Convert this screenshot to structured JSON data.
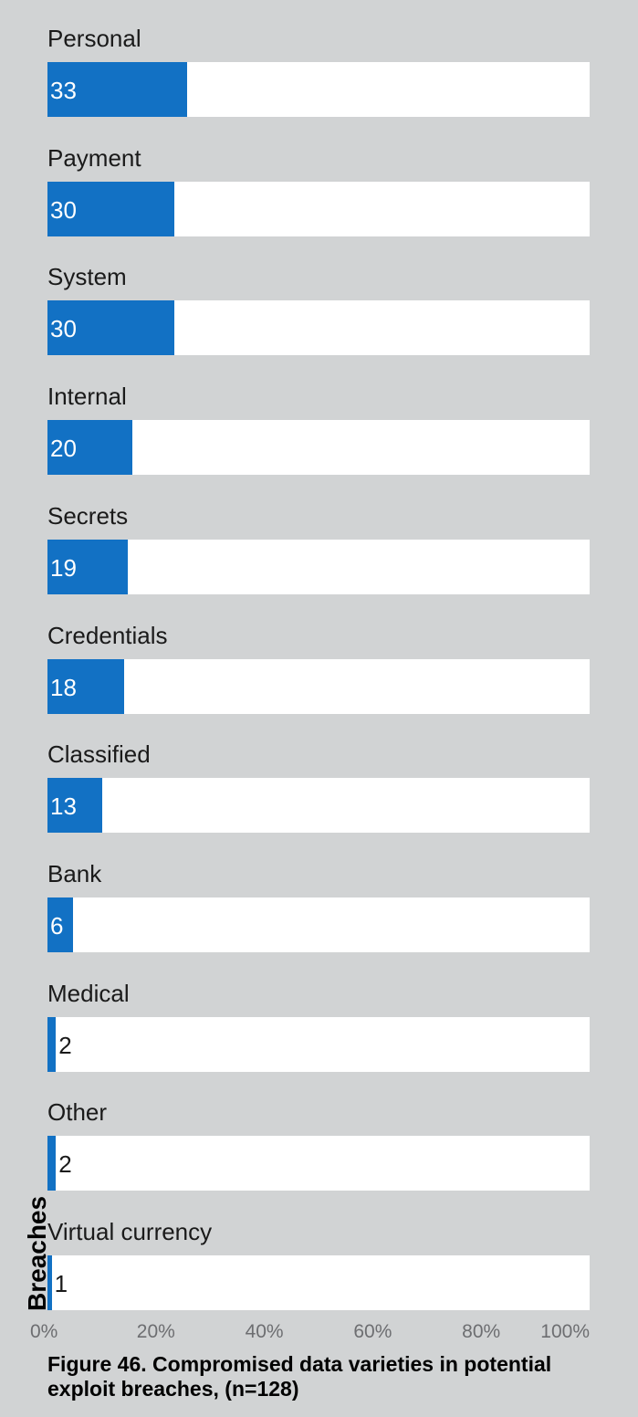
{
  "chart_data": {
    "type": "bar",
    "orientation": "horizontal",
    "categories": [
      "Personal",
      "Payment",
      "System",
      "Internal",
      "Secrets",
      "Credentials",
      "Classified",
      "Bank",
      "Medical",
      "Other",
      "Virtual currency"
    ],
    "values": [
      33,
      30,
      30,
      20,
      19,
      18,
      13,
      6,
      2,
      2,
      1
    ],
    "value_labels": [
      "33",
      "30",
      "30",
      "20",
      "19",
      "18",
      "13",
      "6",
      "2",
      "2",
      "1"
    ],
    "n": 128,
    "xlim": [
      0,
      100
    ],
    "x_ticks": [
      "0%",
      "20%",
      "40%",
      "60%",
      "80%",
      "100%"
    ],
    "x_tick_values": [
      0,
      20,
      40,
      60,
      80,
      100
    ],
    "ylabel": "Breaches",
    "caption": "Figure 46.  Compromised data varieties in potential exploit breaches, (n=128)",
    "grid": false,
    "legend": "none",
    "colors": {
      "bar": "#1271c4",
      "track": "#ffffff",
      "background": "#d1d3d4"
    }
  }
}
